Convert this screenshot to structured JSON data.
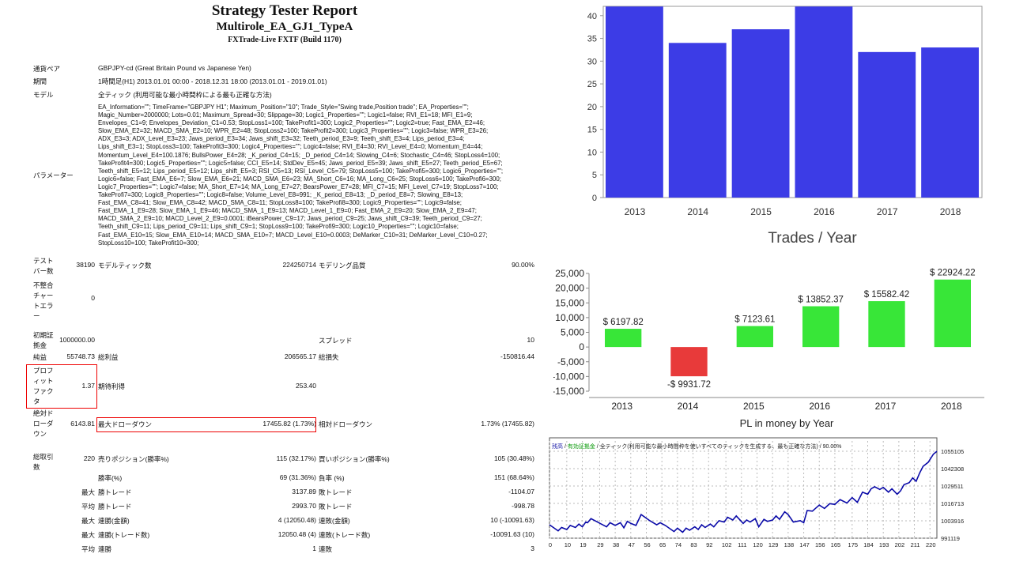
{
  "report": {
    "title": "Strategy Tester Report",
    "ea_name": "Multirole_EA_GJ1_TypeA",
    "server": "FXTrade-Live FXTF (Build 1170)"
  },
  "info": [
    {
      "label": "通貨ペア",
      "value": "GBPJPY-cd (Great Britain Pound vs Japanese Yen)"
    },
    {
      "label": "期間",
      "value": "1時間足(H1) 2013.01.01 00:00 - 2018.12.31 18:00 (2013.01.01 - 2019.01.01)"
    },
    {
      "label": "モデル",
      "value": "全ティック (利用可能な最小時間枠による最も正確な方法)"
    }
  ],
  "parameters": {
    "label": "パラメーター",
    "lines": [
      "EA_Information=\"\"; TimeFrame=\"GBPJPY H1\"; Maximum_Position=\"10\"; Trade_Style=\"Swing trade,Position trade\"; EA_Properties=\"\";",
      "Magic_Number=2000000; Lots=0.01; Maximum_Spread=30; Slippage=30; Logic1_Properties=\"\"; Logic1=false; RVI_E1=18; MFI_E1=9;",
      "Envelopes_C1=9; Envelopes_Deviation_C1=0.53; StopLoss1=100; TakeProfit1=300; Logic2_Properties=\"\"; Logic2=true; Fast_EMA_E2=46;",
      "Slow_EMA_E2=32; MACD_SMA_E2=10; WPR_E2=48; StopLoss2=100; TakeProfit2=300; Logic3_Properties=\"\"; Logic3=false; WPR_E3=26;",
      "ADX_E3=3; ADX_Level_E3=23; Jaws_period_E3=34; Jaws_shift_E3=32; Teeth_period_E3=9; Teeth_shift_E3=4; Lips_period_E3=4;",
      "Lips_shift_E3=1; StopLoss3=100; TakeProfit3=300; Logic4_Properties=\"\"; Logic4=false; RVI_E4=30; RVI_Level_E4=0; Momentum_E4=44;",
      "Momentum_Level_E4=100.1876; BullsPower_E4=28; _K_period_C4=15; _D_period_C4=14; Slowing_C4=6; Stochastic_C4=46; StopLoss4=100;",
      "TakeProfit4=300; Logic5_Properties=\"\"; Logic5=false; CCI_E5=14; StdDev_E5=45; Jaws_period_E5=39; Jaws_shift_E5=27; Teeth_period_E5=67;",
      "Teeth_shift_E5=12; Lips_period_E5=12; Lips_shift_E5=3; RSI_C5=13; RSI_Level_C5=79; StopLoss5=100; TakeProfi5=300; Logic6_Properties=\"\";",
      "Logic6=false; Fast_EMA_E6=7; Slow_EMA_E6=21; MACD_SMA_E6=23; MA_Short_C6=16; MA_Long_C6=25; StopLoss6=100; TakeProfi6=300;",
      "Logic7_Properties=\"\"; Logic7=false; MA_Short_E7=14; MA_Long_E7=27; BearsPower_E7=28; MFI_C7=15; MFI_Level_C7=19; StopLoss7=100;",
      "TakeProfi7=300; Logic8_Properties=\"\"; Logic8=false; Volume_Level_E8=991; _K_period_E8=13; _D_period_E8=7; Slowing_E8=13;",
      "Fast_EMA_C8=41; Slow_EMA_C8=42; MACD_SMA_C8=11; StopLoss8=100; TakeProfi8=300; Logic9_Properties=\"\"; Logic9=false;",
      "Fast_EMA_1_E9=28; Slow_EMA_1_E9=46; MACD_SMA_1_E9=13; MACD_Level_1_E9=0; Fast_EMA_2_E9=20; Slow_EMA_2_E9=47;",
      "MACD_SMA_2_E9=10; MACD_Level_2_E9=0.0001; iBearsPower_C9=17; Jaws_period_C9=25; Jaws_shift_C9=39; Teeth_period_C9=27;",
      "Teeth_shift_C9=11; Lips_period_C9=11; Lips_shift_C9=1; StopLoss9=100; TakeProfi9=300; Logic10_Properties=\"\"; Logic10=false;",
      "Fast_EMA_E10=15; Slow_EMA_E10=14; MACD_SMA_E10=7; MACD_Level_E10=0.0003; DeMarker_C10=31; DeMarker_Level_C10=0.27;",
      "StopLoss10=100; TakeProfit10=300;"
    ]
  },
  "stats": [
    {
      "l1": "テストバー数",
      "v1": "38190",
      "l2": "モデルティック数",
      "v2": "224250714",
      "l3": "モデリング品質",
      "v3": "90.00%"
    },
    {
      "l1": "不整合チャートエラー",
      "v1": "0",
      "l2": "",
      "v2": "",
      "l3": "",
      "v3": ""
    },
    {
      "l1": "初期証拠金",
      "v1": "1000000.00",
      "l2": "",
      "v2": "",
      "l3": "スプレッド",
      "v3": "10"
    },
    {
      "l1": "純益",
      "v1": "55748.73",
      "l2": "総利益",
      "v2": "206565.17",
      "l3": "総損失",
      "v3": "-150816.44"
    },
    {
      "l1": "プロフィットファクタ",
      "v1": "1.37",
      "l2": "期待利得",
      "v2": "253.40",
      "l3": "",
      "v3": ""
    },
    {
      "l1": "絶対ドローダウン",
      "v1": "6143.81",
      "l2": "最大ドローダウン",
      "v2": "17455.82 (1.73%)",
      "l3": "相対ドローダウン",
      "v3": "1.73% (17455.82)"
    },
    {
      "l1": "総取引数",
      "v1": "220",
      "l2": "売りポジション(勝率%)",
      "v2": "115 (32.17%)",
      "l3": "買いポジション(勝率%)",
      "v3": "105 (30.48%)"
    },
    {
      "l1": "",
      "v1": "",
      "l2": "勝率(%)",
      "v2": "69 (31.36%)",
      "l3": "負率 (%)",
      "v3": "151 (68.64%)"
    },
    {
      "l1": "",
      "v1": "最大",
      "l2": "勝トレード",
      "v2": "3137.89",
      "l3": "敗トレード",
      "v3": "-1104.07"
    },
    {
      "l1": "",
      "v1": "平均",
      "l2": "勝トレード",
      "v2": "2993.70",
      "l3": "敗トレード",
      "v3": "-998.78"
    },
    {
      "l1": "",
      "v1": "最大",
      "l2": "連勝(金額)",
      "v2": "4 (12050.48)",
      "l3": "連敗(金額)",
      "v3": "10 (-10091.63)"
    },
    {
      "l1": "",
      "v1": "最大",
      "l2": "連勝(トレード数)",
      "v2": "12050.48 (4)",
      "l3": "連敗(トレード数)",
      "v3": "-10091.63 (10)"
    },
    {
      "l1": "",
      "v1": "平均",
      "l2": "連勝",
      "v2": "1",
      "l3": "連敗",
      "v3": "3"
    }
  ],
  "chart_data": [
    {
      "type": "bar",
      "title": "Trades / Year",
      "categories": [
        "2013",
        "2014",
        "2015",
        "2016",
        "2017",
        "2018"
      ],
      "values": [
        42,
        34,
        37,
        42,
        32,
        33
      ],
      "ylim": [
        0,
        45
      ],
      "yticks": [
        "0",
        "5",
        "10",
        "15",
        "20",
        "25",
        "30",
        "35",
        "40"
      ],
      "color": "#3c3ce6"
    },
    {
      "type": "bar",
      "title": "PL in money by Year",
      "categories": [
        "2013",
        "2014",
        "2015",
        "2016",
        "2017",
        "2018"
      ],
      "values": [
        6197.82,
        -9931.72,
        7123.61,
        13852.37,
        15582.42,
        22924.22
      ],
      "labels": [
        "$ 6197.82",
        "-$ 9931.72",
        "$ 7123.61",
        "$ 13852.37",
        "$ 15582.42",
        "$ 22924.22"
      ],
      "ylim": [
        -15000,
        25000
      ],
      "yticks": [
        "-15,000",
        "-10,000",
        "-5,000",
        "0",
        "5,000",
        "10,000",
        "15,000",
        "20,000",
        "25,000"
      ],
      "pos_color": "#38e638",
      "neg_color": "#e83a3a"
    },
    {
      "type": "line",
      "legend": {
        "balance": "残高",
        "equity": "有効証拠金",
        "model": "全ティック(利用可能な最小時間枠を使いすべてのティックを生成する、最も正確な方法)",
        "quality": "90.00%"
      },
      "xticks": [
        "0",
        "10",
        "19",
        "29",
        "38",
        "47",
        "56",
        "65",
        "74",
        "83",
        "92",
        "102",
        "111",
        "120",
        "129",
        "138",
        "147",
        "156",
        "165",
        "175",
        "184",
        "193",
        "202",
        "211",
        "220"
      ],
      "yticks": [
        "991119",
        "1003916",
        "1016713",
        "1029511",
        "1042308",
        "1055105"
      ],
      "xlim": [
        0,
        224
      ],
      "ylim": [
        991119,
        1055105
      ],
      "color": "#0a0aa8",
      "x": [
        0,
        5,
        7,
        10,
        12,
        15,
        17,
        19,
        21,
        22,
        24,
        27,
        30,
        33,
        35,
        38,
        41,
        43,
        45,
        47,
        50,
        53,
        58,
        62,
        64,
        67,
        72,
        74,
        77,
        79,
        81,
        84,
        86,
        88,
        90,
        93,
        95,
        98,
        101,
        103,
        106,
        108,
        112,
        114,
        116,
        119,
        121,
        124,
        126,
        129,
        131,
        133,
        136,
        138,
        141,
        145,
        147,
        149,
        152,
        156,
        159,
        162,
        165,
        168,
        172,
        175,
        178,
        181,
        184,
        186,
        188,
        191,
        193,
        196,
        198,
        201,
        203,
        205,
        208,
        210,
        212,
        214,
        216,
        219,
        222,
        224
      ],
      "y": [
        1001000,
        996500,
        999000,
        997500,
        1000500,
        999000,
        1001500,
        999500,
        1003000,
        1002500,
        1005500,
        1003500,
        1001500,
        999500,
        1002500,
        1000500,
        1002500,
        998800,
        1003500,
        1002000,
        1000500,
        1008500,
        1004000,
        1001000,
        1002500,
        1000500,
        996000,
        998500,
        995500,
        998500,
        997000,
        999500,
        997500,
        1001000,
        999000,
        1001500,
        999500,
        1004000,
        1003000,
        1006500,
        1004500,
        1007500,
        1002000,
        1004500,
        1003000,
        1005500,
        999500,
        1005000,
        1003500,
        1004500,
        1007500,
        1005000,
        1010500,
        1008500,
        1003000,
        1004000,
        1002500,
        1011500,
        1011000,
        1015500,
        1013000,
        1016500,
        1016000,
        1019500,
        1017000,
        1021000,
        1017500,
        1025000,
        1023500,
        1027500,
        1029000,
        1027000,
        1028500,
        1025000,
        1027500,
        1023500,
        1026000,
        1030500,
        1032000,
        1035500,
        1033000,
        1039000,
        1044000,
        1047000,
        1053000,
        1055000
      ]
    }
  ]
}
